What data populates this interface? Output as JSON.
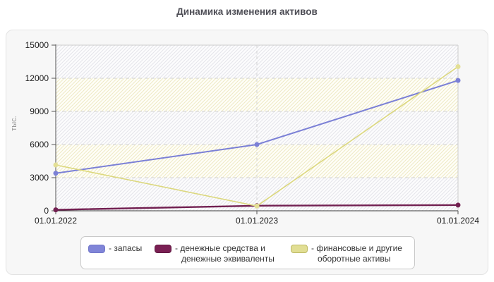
{
  "page": {
    "title": "Динамика изменения активов"
  },
  "chart_data": {
    "type": "line",
    "title": "Динамика изменения активов",
    "ylabel": "тыс.",
    "xlabel": "",
    "x": [
      "01.01.2022",
      "01.01.2023",
      "01.01.2024"
    ],
    "series": [
      {
        "name": "запасы",
        "legend_label": "- запасы",
        "values": [
          3400,
          6000,
          11800
        ],
        "color": "#7b80d6",
        "marker_color": "#7b80d6",
        "swatch_color": "#8085d8",
        "swatch_border": "#7277c9"
      },
      {
        "name": "денежные средства и денежные эквиваленты",
        "legend_label": "- денежные средства и\nденежные эквиваленты",
        "values": [
          90,
          460,
          520
        ],
        "color": "#722051",
        "marker_color": "#722051",
        "swatch_color": "#7a2054",
        "swatch_border": "#5f1840"
      },
      {
        "name": "финансовые и другие оборотные активы",
        "legend_label": "- финансовые и другие\nоборотные активы",
        "values": [
          4150,
          430,
          13050
        ],
        "color": "#dcd87e",
        "marker_color": "#e3df96",
        "swatch_color": "#e1de94",
        "swatch_border": "#bdb964"
      }
    ],
    "ylim": [
      0,
      15000
    ],
    "yticks": [
      0,
      3000,
      6000,
      9000,
      12000,
      15000
    ],
    "grid": "dashed horizontal + dashed vertical at inner x ticks",
    "plot_background": "alternating diagonal-hatch bands (gray / pale-yellow)",
    "legend_position": "bottom",
    "colors": {
      "gridline": "#d2d2d2",
      "axis_dark": "#555555",
      "plot_border_light": "#cccccc",
      "hatch_gray_line": "#e5e5ea",
      "hatch_yellow_line": "#eeeac5",
      "title_color": "#4d4d55"
    }
  }
}
